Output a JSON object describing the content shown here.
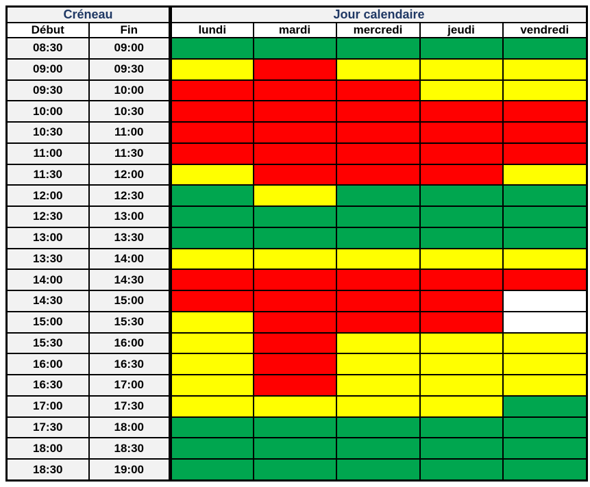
{
  "header": {
    "creneau_label": "Créneau",
    "jour_label": "Jour calendaire",
    "debut_label": "Début",
    "fin_label": "Fin",
    "day_labels": [
      "lundi",
      "mardi",
      "mercredi",
      "jeudi",
      "vendredi"
    ]
  },
  "colors": {
    "green": "#00a64f",
    "yellow": "#ffff00",
    "red": "#ff0000",
    "white": "#ffffff",
    "header_bg": "#f2f2f2",
    "header_text": "#1f3864",
    "border": "#000000"
  },
  "chart_data": {
    "type": "heatmap",
    "title": "",
    "x_labels": [
      "lundi",
      "mardi",
      "mercredi",
      "jeudi",
      "vendredi"
    ],
    "time_slots": [
      {
        "debut": "08:30",
        "fin": "09:00"
      },
      {
        "debut": "09:00",
        "fin": "09:30"
      },
      {
        "debut": "09:30",
        "fin": "10:00"
      },
      {
        "debut": "10:00",
        "fin": "10:30"
      },
      {
        "debut": "10:30",
        "fin": "11:00"
      },
      {
        "debut": "11:00",
        "fin": "11:30"
      },
      {
        "debut": "11:30",
        "fin": "12:00"
      },
      {
        "debut": "12:00",
        "fin": "12:30"
      },
      {
        "debut": "12:30",
        "fin": "13:00"
      },
      {
        "debut": "13:00",
        "fin": "13:30"
      },
      {
        "debut": "13:30",
        "fin": "14:00"
      },
      {
        "debut": "14:00",
        "fin": "14:30"
      },
      {
        "debut": "14:30",
        "fin": "15:00"
      },
      {
        "debut": "15:00",
        "fin": "15:30"
      },
      {
        "debut": "15:30",
        "fin": "16:00"
      },
      {
        "debut": "16:00",
        "fin": "16:30"
      },
      {
        "debut": "16:30",
        "fin": "17:00"
      },
      {
        "debut": "17:00",
        "fin": "17:30"
      },
      {
        "debut": "17:30",
        "fin": "18:00"
      },
      {
        "debut": "18:00",
        "fin": "18:30"
      },
      {
        "debut": "18:30",
        "fin": "19:00"
      }
    ],
    "cell_colors": [
      [
        "green",
        "green",
        "green",
        "green",
        "green"
      ],
      [
        "yellow",
        "red",
        "yellow",
        "yellow",
        "yellow"
      ],
      [
        "red",
        "red",
        "red",
        "yellow",
        "yellow"
      ],
      [
        "red",
        "red",
        "red",
        "red",
        "red"
      ],
      [
        "red",
        "red",
        "red",
        "red",
        "red"
      ],
      [
        "red",
        "red",
        "red",
        "red",
        "red"
      ],
      [
        "yellow",
        "red",
        "red",
        "red",
        "yellow"
      ],
      [
        "green",
        "yellow",
        "green",
        "green",
        "green"
      ],
      [
        "green",
        "green",
        "green",
        "green",
        "green"
      ],
      [
        "green",
        "green",
        "green",
        "green",
        "green"
      ],
      [
        "yellow",
        "yellow",
        "yellow",
        "yellow",
        "yellow"
      ],
      [
        "red",
        "red",
        "red",
        "red",
        "red"
      ],
      [
        "red",
        "red",
        "red",
        "red",
        "white"
      ],
      [
        "yellow",
        "red",
        "red",
        "red",
        "white"
      ],
      [
        "yellow",
        "red",
        "yellow",
        "yellow",
        "yellow"
      ],
      [
        "yellow",
        "red",
        "yellow",
        "yellow",
        "yellow"
      ],
      [
        "yellow",
        "red",
        "yellow",
        "yellow",
        "yellow"
      ],
      [
        "yellow",
        "yellow",
        "yellow",
        "yellow",
        "green"
      ],
      [
        "green",
        "green",
        "green",
        "green",
        "green"
      ],
      [
        "green",
        "green",
        "green",
        "green",
        "green"
      ],
      [
        "green",
        "green",
        "green",
        "green",
        "green"
      ]
    ]
  }
}
